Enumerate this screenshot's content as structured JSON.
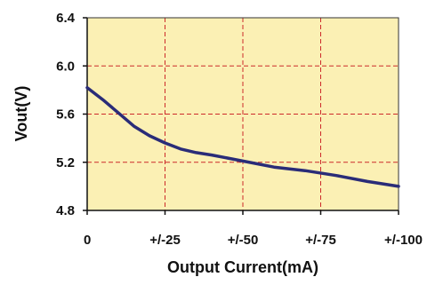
{
  "chart_data": {
    "type": "line",
    "title": "",
    "xlabel": "Output Current(mA)",
    "ylabel": "Vout(V)",
    "x_tick_labels": [
      "0",
      "+/-25",
      "+/-50",
      "+/-75",
      "+/-100"
    ],
    "y_tick_labels": [
      "4.8",
      "5.2",
      "5.6",
      "6.0",
      "6.4"
    ],
    "x_ticks": [
      0,
      25,
      50,
      75,
      100
    ],
    "y_ticks": [
      4.8,
      5.2,
      5.6,
      6.0,
      6.4
    ],
    "xlim": [
      0,
      100
    ],
    "ylim": [
      4.8,
      6.4
    ],
    "grid": true,
    "series": [
      {
        "x": [
          0,
          5,
          10,
          15,
          20,
          25,
          30,
          35,
          40,
          50,
          60,
          70,
          80,
          90,
          100
        ],
        "y": [
          5.82,
          5.72,
          5.61,
          5.5,
          5.42,
          5.36,
          5.31,
          5.28,
          5.26,
          5.21,
          5.16,
          5.13,
          5.09,
          5.04,
          5.0
        ]
      }
    ],
    "colors": {
      "plot_background": "#fbf0b4",
      "line": "#2a2c78",
      "grid": "#cc2a2a",
      "axes": "#333333"
    }
  }
}
